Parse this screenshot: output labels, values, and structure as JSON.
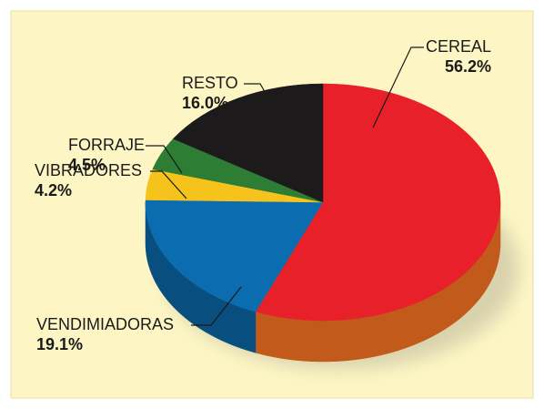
{
  "chart_data": {
    "type": "pie",
    "categories": [
      "CEREAL",
      "VENDIMIADORAS",
      "VIBRADORES",
      "FORRAJE",
      "RESTO"
    ],
    "values": [
      56.2,
      19.1,
      4.2,
      4.5,
      16.0
    ],
    "value_labels": [
      "56.2%",
      "19.1%",
      "4.2%",
      "4.5%",
      "16.0%"
    ],
    "colors": [
      "#e8202a",
      "#0b6db0",
      "#f6c21c",
      "#2e7d34",
      "#1c1a1b"
    ]
  }
}
